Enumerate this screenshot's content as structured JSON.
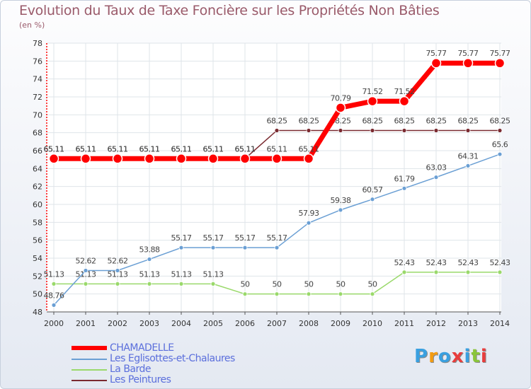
{
  "title": "Evolution du Taux de Taxe Foncière sur les Propriétés Non Bâties",
  "unit_label": "(en %)",
  "logo_text": "Proxiti",
  "logo_colors": [
    "#3aa0e0",
    "#f39c12",
    "#3aa0e0",
    "#e83d3d",
    "#3aa0e0",
    "#8ac53b",
    "#e83d3d"
  ],
  "chart_data": {
    "type": "line",
    "title": "Evolution du Taux de Taxe Foncière sur les Propriétés Non Bâties",
    "ylabel": "(en %)",
    "xlabel": "",
    "x": [
      "2000",
      "2001",
      "2002",
      "2003",
      "2004",
      "2005",
      "2006",
      "2007",
      "2008",
      "2009",
      "2010",
      "2011",
      "2012",
      "2013",
      "2014"
    ],
    "ylim": [
      48,
      78
    ],
    "yticks": [
      48,
      50,
      52,
      54,
      56,
      58,
      60,
      62,
      64,
      66,
      68,
      70,
      72,
      74,
      76,
      78
    ],
    "grid": true,
    "series": [
      {
        "name": "Les Peintures",
        "color": "#7a2a30",
        "values": [
          65.11,
          65.11,
          65.11,
          65.11,
          65.11,
          65.11,
          65.11,
          68.25,
          68.25,
          68.25,
          68.25,
          68.25,
          68.25,
          68.25,
          68.25
        ],
        "labels": [
          "65.11",
          "65.11",
          "65.11",
          "65.11",
          "65.11",
          "65.11",
          "65.11",
          "68.25",
          "68.25",
          "68.25",
          "68.25",
          "68.25",
          "68.25",
          "68.25",
          "68.25"
        ]
      },
      {
        "name": "La Barde",
        "color": "#9ad96b",
        "values": [
          51.13,
          51.13,
          51.13,
          51.13,
          51.13,
          51.13,
          50,
          50,
          50,
          50,
          50,
          52.43,
          52.43,
          52.43,
          52.43
        ],
        "labels": [
          "51.13",
          "51.13",
          "51.13",
          "51.13",
          "51.13",
          "51.13",
          "50",
          "50",
          "50",
          "50",
          "50",
          "52.43",
          "52.43",
          "52.43",
          "52.43"
        ]
      },
      {
        "name": "Les Eglisottes-et-Chalaures",
        "color": "#6a9fd4",
        "values": [
          48.76,
          52.62,
          52.62,
          53.88,
          55.17,
          55.17,
          55.17,
          55.17,
          57.93,
          59.38,
          60.57,
          61.79,
          63.03,
          64.31,
          65.6
        ],
        "labels": [
          "48.76",
          "52.62",
          "52.62",
          "53.88",
          "55.17",
          "55.17",
          "55.17",
          "55.17",
          "57.93",
          "59.38",
          "60.57",
          "61.79",
          "63.03",
          "64.31",
          "65.6"
        ]
      },
      {
        "name": "CHAMADELLE",
        "color": "#ff0000",
        "values": [
          65.11,
          65.11,
          65.11,
          65.11,
          65.11,
          65.11,
          65.11,
          65.11,
          65.11,
          70.79,
          71.52,
          71.52,
          75.77,
          75.77,
          75.77
        ],
        "labels": [
          "65.11",
          "65.11",
          "65.11",
          "65.11",
          "65.11",
          "65.11",
          "65.11",
          "65.11",
          "65.11",
          "70.79",
          "71.52",
          "71.52",
          "75.77",
          "75.77",
          "75.77"
        ]
      }
    ]
  },
  "legend": [
    {
      "label": "CHAMADELLE",
      "color": "#ff0000"
    },
    {
      "label": "Les Eglisottes-et-Chalaures",
      "color": "#6a9fd4"
    },
    {
      "label": "La Barde",
      "color": "#9ad96b"
    },
    {
      "label": "Les Peintures",
      "color": "#7a2a30"
    }
  ]
}
